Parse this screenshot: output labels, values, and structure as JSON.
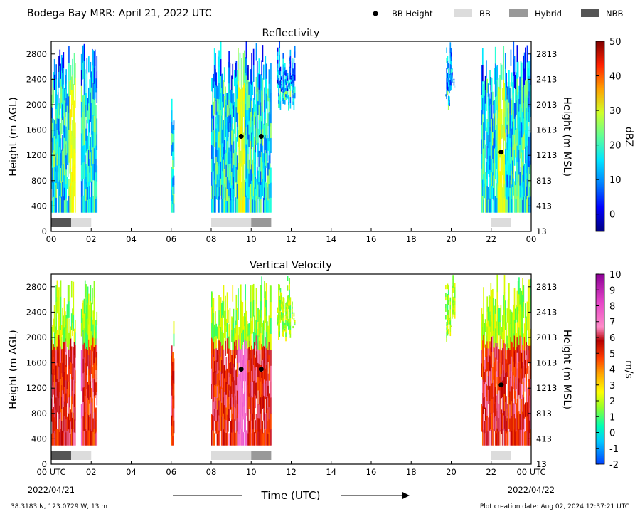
{
  "header": {
    "title": "Bodega Bay MRR:  April 21, 2022 UTC",
    "legend": [
      {
        "label": "BB Height",
        "kind": "dot",
        "color": "#000000"
      },
      {
        "label": "BB",
        "kind": "box",
        "color": "#dcdcdc"
      },
      {
        "label": "Hybrid",
        "kind": "box",
        "color": "#999999"
      },
      {
        "label": "NBB",
        "kind": "box",
        "color": "#555555"
      }
    ]
  },
  "footer": {
    "location": "38.3183 N, 123.0729 W, 13 m",
    "creation": "Plot creation date: Aug 02, 2024 12:37:21 UTC",
    "xlabel": "Time (UTC)",
    "start_date": "2022/04/21",
    "end_date": "2022/04/22"
  },
  "chart_data": [
    {
      "type": "heatmap",
      "title": "Reflectivity",
      "ylabel": "Height (m AGL)",
      "ylabel_right": "Height (m MSL)",
      "xlim": [
        0,
        24
      ],
      "ylim": [
        0,
        3000
      ],
      "x_ticks": [
        "00",
        "02",
        "04",
        "06",
        "08",
        "10",
        "12",
        "14",
        "16",
        "18",
        "20",
        "22",
        "00"
      ],
      "y_ticks_left": [
        0,
        400,
        800,
        1200,
        1600,
        2000,
        2400,
        2800
      ],
      "y_ticks_right": [
        "13",
        "413",
        "813",
        "1213",
        "1613",
        "2013",
        "2413",
        "2813"
      ],
      "colorbar": {
        "label": "dBZ",
        "range": [
          -5,
          50
        ],
        "ticks": [
          0,
          10,
          20,
          30,
          40,
          50
        ],
        "colormap": "jet"
      },
      "bb_height_points": [
        {
          "time": 9.5,
          "height": 1500
        },
        {
          "time": 10.5,
          "height": 1500
        },
        {
          "time": 22.5,
          "height": 1250
        }
      ],
      "bb_type_segments": [
        {
          "start": 0.0,
          "end": 1.0,
          "type": "NBB"
        },
        {
          "start": 1.0,
          "end": 2.0,
          "type": "BB"
        },
        {
          "start": 8.0,
          "end": 10.0,
          "type": "BB"
        },
        {
          "start": 10.0,
          "end": 11.0,
          "type": "Hybrid"
        },
        {
          "start": 22.0,
          "end": 23.0,
          "type": "BB"
        }
      ]
    },
    {
      "type": "heatmap",
      "title": "Vertical Velocity",
      "ylabel": "Height (m AGL)",
      "ylabel_right": "Height (m MSL)",
      "xlim": [
        0,
        24
      ],
      "ylim": [
        0,
        3000
      ],
      "x_ticks": [
        "00 UTC",
        "02",
        "04",
        "06",
        "08",
        "10",
        "12",
        "14",
        "16",
        "18",
        "20",
        "22",
        "00 UTC"
      ],
      "y_ticks_left": [
        0,
        400,
        800,
        1200,
        1600,
        2000,
        2400,
        2800
      ],
      "y_ticks_right": [
        "13",
        "413",
        "813",
        "1213",
        "1613",
        "2013",
        "2413",
        "2813"
      ],
      "colorbar": {
        "label": "m/s",
        "range": [
          -2,
          10
        ],
        "ticks": [
          -2,
          -1,
          0,
          1,
          2,
          3,
          4,
          5,
          6,
          7,
          8,
          9,
          10
        ],
        "colormap": "velocity"
      },
      "bb_height_points": [
        {
          "time": 9.5,
          "height": 1500
        },
        {
          "time": 10.5,
          "height": 1500
        },
        {
          "time": 22.5,
          "height": 1250
        }
      ],
      "bb_type_segments": [
        {
          "start": 0.0,
          "end": 1.0,
          "type": "NBB"
        },
        {
          "start": 1.0,
          "end": 2.0,
          "type": "BB"
        },
        {
          "start": 8.0,
          "end": 10.0,
          "type": "BB"
        },
        {
          "start": 10.0,
          "end": 11.0,
          "type": "Hybrid"
        },
        {
          "start": 22.0,
          "end": 23.0,
          "type": "BB"
        }
      ]
    }
  ]
}
